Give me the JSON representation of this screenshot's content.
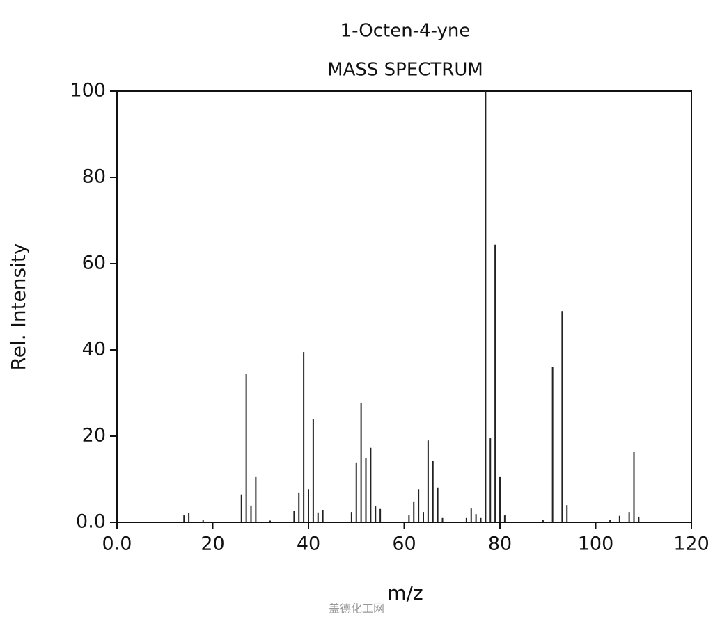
{
  "chart_data": {
    "type": "bar",
    "title": "1-Octen-4-yne",
    "subtitle": "MASS SPECTRUM",
    "x_label": "m/z",
    "y_label": "Rel. Intensity",
    "watermark": "盖德化工网",
    "color": "#222222",
    "x": [
      14,
      15,
      18,
      26,
      27,
      28,
      29,
      32,
      37,
      38,
      39,
      40,
      41,
      42,
      43,
      49,
      50,
      51,
      52,
      53,
      54,
      55,
      61,
      62,
      63,
      64,
      65,
      66,
      67,
      68,
      73,
      74,
      75,
      76,
      77,
      78,
      79,
      80,
      81,
      89,
      91,
      93,
      94,
      103,
      105,
      107,
      108,
      109
    ],
    "values": [
      1.6,
      2.1,
      0.5,
      6.5,
      34.4,
      3.9,
      10.5,
      0.4,
      2.6,
      6.8,
      39.5,
      7.7,
      24,
      2.3,
      2.9,
      2.4,
      13.9,
      27.7,
      15,
      17.3,
      3.7,
      3.1,
      1.6,
      4.7,
      7.7,
      2.4,
      19,
      14.2,
      8.1,
      1,
      1,
      3.2,
      1.9,
      1,
      100,
      19.5,
      64.4,
      10.5,
      1.6,
      0.6,
      36.1,
      49,
      4,
      0.5,
      1.5,
      2.4,
      16.3,
      1.3
    ],
    "xlim": [
      0,
      120
    ],
    "xticks": [
      {
        "value": 0,
        "label": "0.0"
      },
      20,
      40,
      60,
      80,
      100,
      120
    ],
    "ylim": [
      0,
      100
    ],
    "yticks": [
      {
        "value": 0,
        "label": "0.0"
      },
      20,
      40,
      60,
      80,
      100
    ]
  }
}
